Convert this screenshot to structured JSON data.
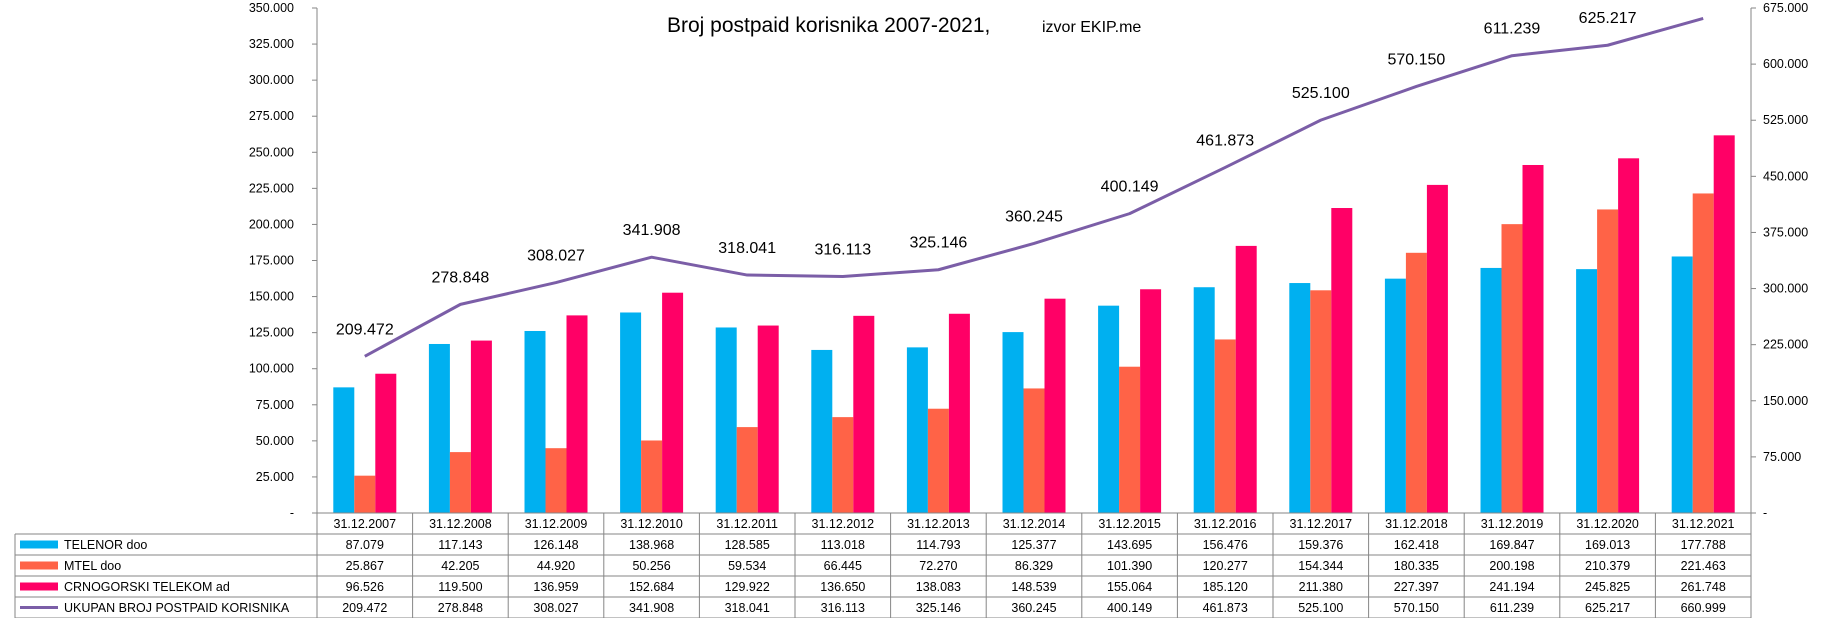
{
  "chart_data": {
    "type": "bar",
    "title": "Broj postpaid korisnika 2007-2021,",
    "subtitle": "izvor EKIP.me",
    "categories": [
      "31.12.2007",
      "31.12.2008",
      "31.12.2009",
      "31.12.2010",
      "31.12.2011",
      "31.12.2012",
      "31.12.2013",
      "31.12.2014",
      "31.12.2015",
      "31.12.2016",
      "31.12.2017",
      "31.12.2018",
      "31.12.2019",
      "31.12.2020",
      "31.12.2021"
    ],
    "series": [
      {
        "name": "TELENOR doo",
        "kind": "bar",
        "axis": "left",
        "color": "#00B0F0",
        "values": [
          87079,
          117143,
          126148,
          138968,
          128585,
          113018,
          114793,
          125377,
          143695,
          156476,
          159376,
          162418,
          169847,
          169013,
          177788
        ],
        "labels": [
          "87.079",
          "117.143",
          "126.148",
          "138.968",
          "128.585",
          "113.018",
          "114.793",
          "125.377",
          "143.695",
          "156.476",
          "159.376",
          "162.418",
          "169.847",
          "169.013",
          "177.788"
        ]
      },
      {
        "name": "MTEL doo",
        "kind": "bar",
        "axis": "left",
        "color": "#FF6347",
        "values": [
          25867,
          42205,
          44920,
          50256,
          59534,
          66445,
          72270,
          86329,
          101390,
          120277,
          154344,
          180335,
          200198,
          210379,
          221463
        ],
        "labels": [
          "25.867",
          "42.205",
          "44.920",
          "50.256",
          "59.534",
          "66.445",
          "72.270",
          "86.329",
          "101.390",
          "120.277",
          "154.344",
          "180.335",
          "200.198",
          "210.379",
          "221.463"
        ]
      },
      {
        "name": "CRNOGORSKI TELEKOM ad",
        "kind": "bar",
        "axis": "left",
        "color": "#FF0066",
        "values": [
          96526,
          119500,
          136959,
          152684,
          129922,
          136650,
          138083,
          148539,
          155064,
          185120,
          211380,
          227397,
          241194,
          245825,
          261748
        ],
        "labels": [
          "96.526",
          "119.500",
          "136.959",
          "152.684",
          "129.922",
          "136.650",
          "138.083",
          "148.539",
          "155.064",
          "185.120",
          "211.380",
          "227.397",
          "241.194",
          "245.825",
          "261.748"
        ]
      },
      {
        "name": "UKUPAN BROJ POSTPAID KORISNIKA",
        "kind": "line",
        "axis": "right",
        "color": "#7B5EA7",
        "values": [
          209472,
          278848,
          308027,
          341908,
          318041,
          316113,
          325146,
          360245,
          400149,
          461873,
          525100,
          570150,
          611239,
          625217,
          660999
        ],
        "labels": [
          "209.472",
          "278.848",
          "308.027",
          "341.908",
          "318.041",
          "316.113",
          "325.146",
          "360.245",
          "400.149",
          "461.873",
          "525.100",
          "570.150",
          "611.239",
          "625.217",
          "660.999"
        ]
      }
    ],
    "y_left": {
      "min": 0,
      "max": 350000,
      "ticks": [
        {
          "v": 0,
          "label": "-"
        },
        {
          "v": 25000,
          "label": "25.000"
        },
        {
          "v": 50000,
          "label": "50.000"
        },
        {
          "v": 75000,
          "label": "75.000"
        },
        {
          "v": 100000,
          "label": "100.000"
        },
        {
          "v": 125000,
          "label": "125.000"
        },
        {
          "v": 150000,
          "label": "150.000"
        },
        {
          "v": 175000,
          "label": "175.000"
        },
        {
          "v": 200000,
          "label": "200.000"
        },
        {
          "v": 225000,
          "label": "225.000"
        },
        {
          "v": 250000,
          "label": "250.000"
        },
        {
          "v": 275000,
          "label": "275.000"
        },
        {
          "v": 300000,
          "label": "300.000"
        },
        {
          "v": 325000,
          "label": "325.000"
        },
        {
          "v": 350000,
          "label": "350.000"
        }
      ]
    },
    "y_right": {
      "min": 0,
      "max": 675000,
      "ticks": [
        {
          "v": 0,
          "label": "-"
        },
        {
          "v": 75000,
          "label": "75.000"
        },
        {
          "v": 150000,
          "label": "150.000"
        },
        {
          "v": 225000,
          "label": "225.000"
        },
        {
          "v": 300000,
          "label": "300.000"
        },
        {
          "v": 375000,
          "label": "375.000"
        },
        {
          "v": 450000,
          "label": "450.000"
        },
        {
          "v": 525000,
          "label": "525.000"
        },
        {
          "v": 600000,
          "label": "600.000"
        },
        {
          "v": 675000,
          "label": "675.000"
        }
      ]
    },
    "grid": false,
    "legend": "data-table-below"
  }
}
